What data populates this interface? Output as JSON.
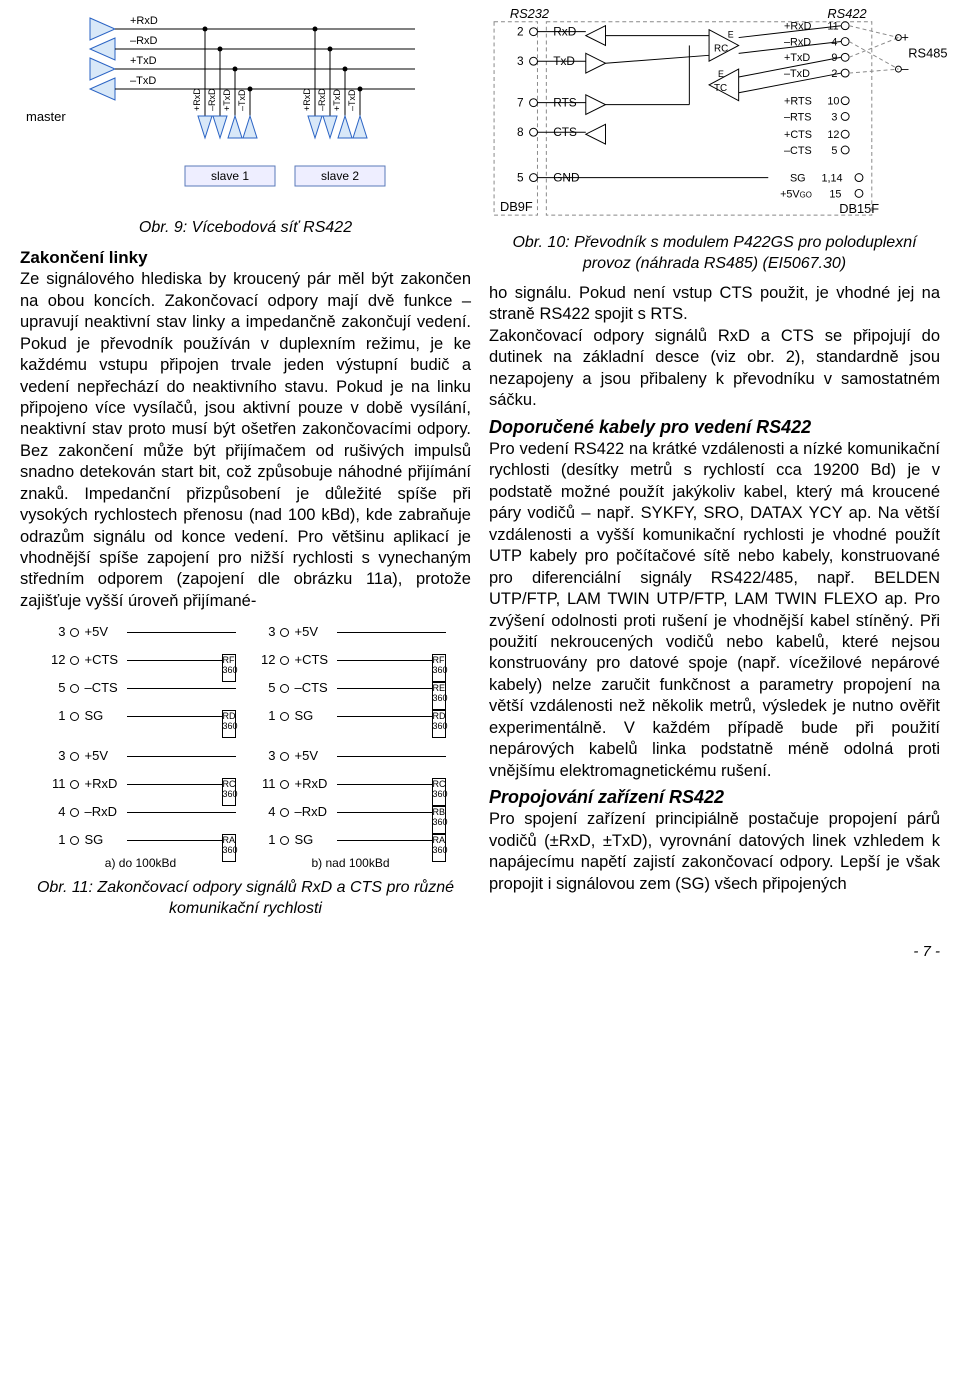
{
  "fig9": {
    "master_label": "master",
    "signals": [
      "+RxD",
      "–RxD",
      "+TxD",
      "–TxD"
    ],
    "slave1": "slave 1",
    "slave2": "slave 2",
    "caption": "Obr. 9: Vícebodová síť RS422",
    "colors": {
      "tri_fill": "#d8e8f8",
      "tri_stroke": "#2a63c4"
    }
  },
  "sec_zakonceni": {
    "title": "Zakončení linky",
    "body": "Ze signálového hlediska by kroucený pár měl být zakončen na obou koncích. Zakončovací odpory mají dvě funkce – upravují neaktivní stav linky a impedančně zakončují vedení. Pokud je převodník používán v duplexním režimu, je ke každému vstupu připojen trvale jeden výstupní budič a vedení nepřechází do neaktivního stavu. Pokud je na linku připojeno více vysílačů, jsou aktivní pouze v době vysílání, neaktivní stav proto musí být ošetřen zakončovacími odpory. Bez zakončení může být přijímačem od rušivých impulsů snadno detekován start bit, což způsobuje náhodné přijímání znaků. Impedanční přizpůsobení je důležité spíše při vysokých rychlostech přenosu (nad 100 kBd), kde zabraňuje odrazům signálu od konce vedení. Pro většinu aplikací je vhodnější spíše zapojení pro nižší rychlosti s vynechaným středním odporem (zapojení dle obrázku 11a), protože zajišťuje vyšší úroveň přijímané-"
  },
  "fig11": {
    "left": {
      "rows": [
        {
          "n": "3",
          "lab": "+5V",
          "res": null
        },
        {
          "n": "12",
          "lab": "+CTS",
          "res": "RF 360"
        },
        {
          "n": "5",
          "lab": "–CTS",
          "res": null
        },
        {
          "n": "1",
          "lab": "SG",
          "res": "RD 360"
        },
        {
          "n": "3",
          "lab": "+5V",
          "res": null
        },
        {
          "n": "11",
          "lab": "+RxD",
          "res": "RC 360"
        },
        {
          "n": "4",
          "lab": "–RxD",
          "res": null
        },
        {
          "n": "1",
          "lab": "SG",
          "res": "RA 360"
        }
      ],
      "sub": "a) do 100kBd"
    },
    "right": {
      "rows": [
        {
          "n": "3",
          "lab": "+5V",
          "res": null
        },
        {
          "n": "12",
          "lab": "+CTS",
          "res": "RF 360"
        },
        {
          "n": "5",
          "lab": "–CTS",
          "res": "RE 360"
        },
        {
          "n": "1",
          "lab": "SG",
          "res": "RD 360"
        },
        {
          "n": "3",
          "lab": "+5V",
          "res": null
        },
        {
          "n": "11",
          "lab": "+RxD",
          "res": "RC 360"
        },
        {
          "n": "4",
          "lab": "–RxD",
          "res": "RB 360"
        },
        {
          "n": "1",
          "lab": "SG",
          "res": "RA 360"
        }
      ],
      "sub": "b) nad 100kBd"
    },
    "caption": "Obr. 11: Zakončovací odpory signálů RxD a CTS pro různé komunikační rychlosti"
  },
  "fig10": {
    "left_header": "RS232",
    "right_header": "RS422",
    "rs485": "RS485",
    "db9f": "DB9F",
    "db15f": "DB15F",
    "left_pins": [
      {
        "n": "2",
        "lab": "RxD"
      },
      {
        "n": "3",
        "lab": "TxD"
      },
      {
        "n": "7",
        "lab": "RTS"
      },
      {
        "n": "8",
        "lab": "CTS"
      },
      {
        "n": "5",
        "lab": "GND"
      }
    ],
    "right_pins": [
      {
        "lab": "+RxD",
        "n": "11"
      },
      {
        "lab": "–RxD",
        "n": "4"
      },
      {
        "lab": "+TxD",
        "n": "9"
      },
      {
        "lab": "–TxD",
        "n": "2"
      },
      {
        "lab": "+RTS",
        "n": "10"
      },
      {
        "lab": "–RTS",
        "n": "3"
      },
      {
        "lab": "+CTS",
        "n": "12"
      },
      {
        "lab": "–CTS",
        "n": "5"
      },
      {
        "lab": "SG",
        "n": "1,14"
      },
      {
        "lab": "+5V GO",
        "n": "15"
      }
    ],
    "caption": "Obr. 10: Převodník s modulem P422GS pro poloduplexní provoz (náhrada RS485) (EI5067.30)",
    "labels": {
      "rc": "RC",
      "tc": "TC",
      "e": "E"
    }
  },
  "right_body1": "ho signálu. Pokud není vstup CTS použit, je vhodné jej na straně RS422 spojit s RTS.\nZakončovací odpory signálů RxD a CTS se připojují do dutinek na základní desce (viz obr. 2), standardně jsou nezapojeny a jsou přibaleny k převodníku v samostatném sáčku.",
  "sec_kabely": {
    "title": "Doporučené kabely pro vedení RS422",
    "body": "Pro vedení RS422 na krátké vzdálenosti a nízké komunikační rychlosti (desítky metrů s rychlostí cca 19200 Bd) je v podstatě možné použít jakýkoliv kabel, který má kroucené páry vodičů – např. SYKFY, SRO, DATAX YCY ap. Na větší vzdálenosti a vyšší komunikační rychlosti je vhodné použít UTP kabely pro počítačové sítě nebo kabely, konstruované pro diferenciální signály RS422/485, např. BELDEN UTP/FTP, LAM TWIN UTP/FTP, LAM TWIN FLEXO ap. Pro zvýšení odolnosti proti rušení je vhodnější kabel stíněný. Při použití nekroucených vodičů nebo kabelů, které nejsou konstruovány pro datové spoje (např. vícežilové nepárové kabely) nelze zaručit funkčnost a parametry propojení na větší vzdálenosti než několik metrů, výsledek je nutno ověřit experimentálně. V každém případě bude při použití nepárových kabelů linka podstatně méně odolná proti vnějšímu elektromagnetickému rušení."
  },
  "sec_propoj": {
    "title": "Propojování zařízení RS422",
    "body": "Pro spojení zařízení principiálně postačuje propojení párů vodičů (±RxD, ±TxD), vyrovnání datových linek vzhledem k napájecímu napětí zajistí zakončovací odpory. Lepší je však propojit i signálovou zem (SG) všech připojených"
  },
  "page": "- 7 -"
}
